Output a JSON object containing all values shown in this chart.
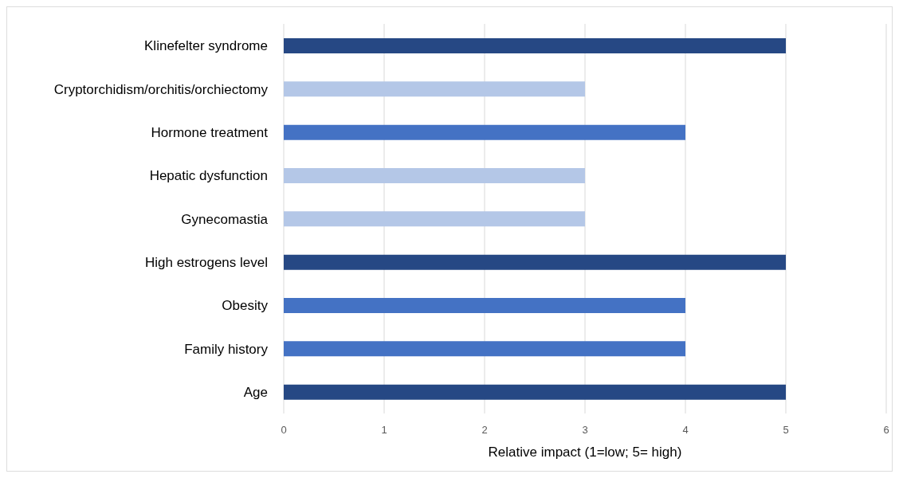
{
  "chart_data": {
    "type": "bar",
    "orientation": "horizontal",
    "xlabel": "Relative impact (1=low; 5= high)",
    "categories": [
      "Klinefelter syndrome",
      "Cryptorchidism/orchitis/orchiectomy",
      "Hormone treatment",
      "Hepatic dysfunction",
      "Gynecomastia",
      "High estrogens level",
      "Obesity",
      "Family history",
      "Age"
    ],
    "values": [
      5,
      3,
      4,
      3,
      3,
      5,
      4,
      4,
      5
    ],
    "colors": [
      "#264884",
      "#b4c7e7",
      "#4472c4",
      "#b4c7e7",
      "#b4c7e7",
      "#264884",
      "#4472c4",
      "#4472c4",
      "#264884"
    ],
    "xlim": [
      0,
      6
    ],
    "xticks": [
      0,
      1,
      2,
      3,
      4,
      5,
      6
    ],
    "grid": "x",
    "legend": false
  }
}
